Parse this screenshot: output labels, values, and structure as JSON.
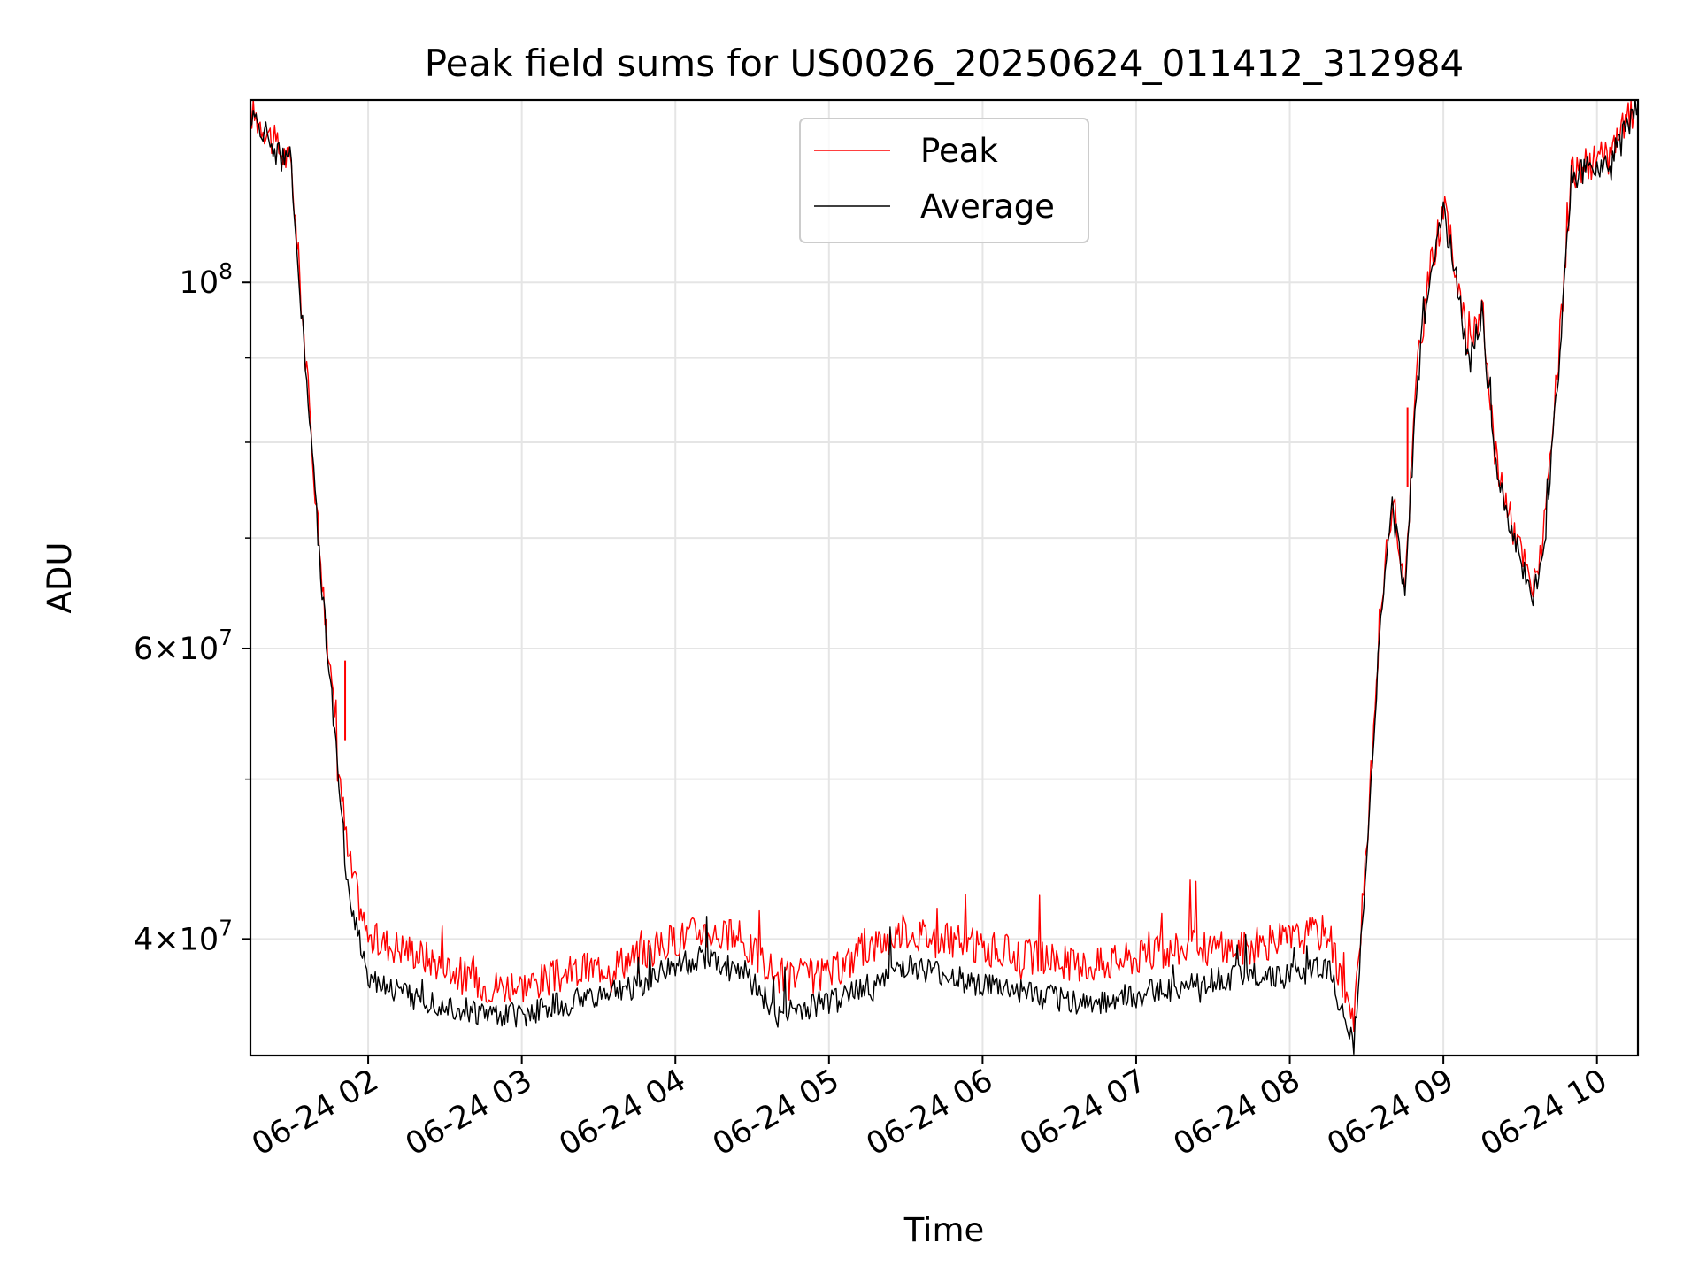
{
  "chart_data": {
    "type": "line",
    "title": "Peak field sums for US0026_20250624_011412_312984",
    "xlabel": "Time",
    "ylabel": "ADU",
    "yscale": "log",
    "ylim": [
      34000000,
      129000000
    ],
    "xlim": [
      "2025-06-24 01:14",
      "2025-06-24 10:16"
    ],
    "grid": true,
    "legend_position": "upper center",
    "x_ticks": [
      {
        "label": "06-24 02",
        "value": "2025-06-24 02:00"
      },
      {
        "label": "06-24 03",
        "value": "2025-06-24 03:00"
      },
      {
        "label": "06-24 04",
        "value": "2025-06-24 04:00"
      },
      {
        "label": "06-24 05",
        "value": "2025-06-24 05:00"
      },
      {
        "label": "06-24 06",
        "value": "2025-06-24 06:00"
      },
      {
        "label": "06-24 07",
        "value": "2025-06-24 07:00"
      },
      {
        "label": "06-24 08",
        "value": "2025-06-24 08:00"
      },
      {
        "label": "06-24 09",
        "value": "2025-06-24 09:00"
      },
      {
        "label": "06-24 10",
        "value": "2025-06-24 10:00"
      }
    ],
    "y_ticks": [
      {
        "mantissa": "4",
        "exp": "7",
        "value": 40000000,
        "kind": "times"
      },
      {
        "mantissa": "6",
        "exp": "7",
        "value": 60000000,
        "kind": "times"
      },
      {
        "mantissa": "10",
        "exp": "8",
        "value": 100000000,
        "kind": "pow"
      }
    ],
    "y_minor_gridlines": [
      50000000,
      70000000,
      80000000,
      90000000
    ],
    "x": [
      "2025-06-24 01:14",
      "2025-06-24 01:20",
      "2025-06-24 01:24",
      "2025-06-24 01:30",
      "2025-06-24 01:36",
      "2025-06-24 01:42",
      "2025-06-24 01:48",
      "2025-06-24 01:52",
      "2025-06-24 02:00",
      "2025-06-24 02:15",
      "2025-06-24 02:30",
      "2025-06-24 02:45",
      "2025-06-24 03:00",
      "2025-06-24 03:15",
      "2025-06-24 03:30",
      "2025-06-24 03:45",
      "2025-06-24 04:00",
      "2025-06-24 04:10",
      "2025-06-24 04:25",
      "2025-06-24 04:40",
      "2025-06-24 05:00",
      "2025-06-24 05:15",
      "2025-06-24 05:30",
      "2025-06-24 05:45",
      "2025-06-24 06:00",
      "2025-06-24 06:20",
      "2025-06-24 06:40",
      "2025-06-24 07:00",
      "2025-06-24 07:20",
      "2025-06-24 07:40",
      "2025-06-24 08:00",
      "2025-06-24 08:15",
      "2025-06-24 08:25",
      "2025-06-24 08:30",
      "2025-06-24 08:35",
      "2025-06-24 08:40",
      "2025-06-24 08:45",
      "2025-06-24 08:50",
      "2025-06-24 08:55",
      "2025-06-24 09:00",
      "2025-06-24 09:05",
      "2025-06-24 09:10",
      "2025-06-24 09:15",
      "2025-06-24 09:20",
      "2025-06-24 09:25",
      "2025-06-24 09:35",
      "2025-06-24 09:40",
      "2025-06-24 09:45",
      "2025-06-24 09:50",
      "2025-06-24 09:55",
      "2025-06-24 10:05",
      "2025-06-24 10:10",
      "2025-06-24 10:16"
    ],
    "series": [
      {
        "name": "Peak",
        "color": "#ff0000",
        "values": [
          127000000,
          124000000,
          121000000,
          118000000,
          88000000,
          66000000,
          52000000,
          45000000,
          40000000,
          39500000,
          38500000,
          37500000,
          37500000,
          38000000,
          38500000,
          39000000,
          40000000,
          40500000,
          40000000,
          38000000,
          38000000,
          39500000,
          40500000,
          40000000,
          39500000,
          39000000,
          38500000,
          39000000,
          39500000,
          39500000,
          40000000,
          40500000,
          35500000,
          45000000,
          62000000,
          74000000,
          66000000,
          90000000,
          102000000,
          111000000,
          102000000,
          90000000,
          97000000,
          79000000,
          73000000,
          65000000,
          72000000,
          90000000,
          116000000,
          118000000,
          119000000,
          124000000,
          129000000
        ],
        "spikes": [
          {
            "x": "2025-06-24 01:51",
            "value": 59000000
          },
          {
            "x": "2025-06-24 08:46",
            "value": 84000000
          }
        ]
      },
      {
        "name": "Average",
        "color": "#000000",
        "values": [
          126000000,
          123000000,
          120000000,
          117000000,
          87000000,
          65000000,
          51000000,
          43000000,
          38000000,
          37000000,
          36500000,
          36000000,
          36000000,
          36500000,
          37000000,
          37500000,
          38500000,
          39000000,
          38500000,
          36000000,
          36500000,
          37500000,
          38500000,
          38000000,
          37500000,
          37000000,
          36500000,
          37000000,
          37500000,
          38000000,
          38000000,
          38500000,
          34500000,
          44000000,
          61000000,
          73000000,
          65000000,
          89000000,
          101000000,
          110000000,
          101000000,
          89000000,
          96000000,
          78000000,
          72000000,
          64000000,
          71000000,
          89000000,
          115000000,
          117000000,
          118000000,
          123000000,
          128000000
        ]
      }
    ]
  }
}
